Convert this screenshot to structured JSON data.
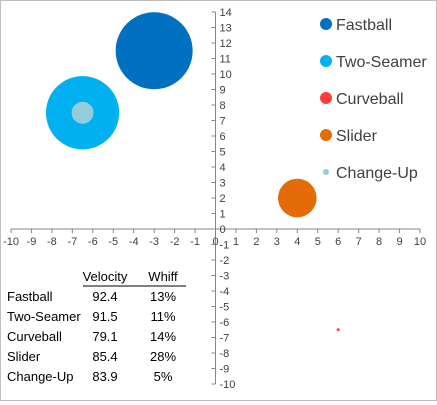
{
  "chart_data": {
    "type": "bubble",
    "xlim": [
      -10,
      10
    ],
    "ylim": [
      -10,
      14
    ],
    "x_ticks": [
      -10,
      -9,
      -8,
      -7,
      -6,
      -5,
      -4,
      -3,
      -2,
      -1,
      0,
      1,
      2,
      3,
      4,
      5,
      6,
      7,
      8,
      9,
      10
    ],
    "y_ticks": [
      -10,
      -9,
      -8,
      -7,
      -6,
      -5,
      -4,
      -3,
      -2,
      -1,
      0,
      1,
      2,
      3,
      4,
      5,
      6,
      7,
      8,
      9,
      10,
      11,
      12,
      13,
      14
    ],
    "grid": false,
    "legend_position": "right",
    "series": [
      {
        "name": "Fastball",
        "x": -3,
        "y": 11.5,
        "size": 92.4,
        "color": "#0070C0"
      },
      {
        "name": "Two-Seamer",
        "x": -6.5,
        "y": 7.5,
        "size": 91.5,
        "color": "#00B0F0"
      },
      {
        "name": "Curveball",
        "x": 6,
        "y": -6.5,
        "size": 79.1,
        "color": "#FF3B3B"
      },
      {
        "name": "Slider",
        "x": 4,
        "y": 2,
        "size": 85.4,
        "color": "#E36C09"
      },
      {
        "name": "Change-Up",
        "x": -6.5,
        "y": 7.5,
        "size": 83.9,
        "color": "#92CDDC"
      }
    ],
    "table": {
      "headers": [
        "",
        "Velocity",
        "Whiff"
      ],
      "rows": [
        [
          "Fastball",
          "92.4",
          "13%"
        ],
        [
          "Two-Seamer",
          "91.5",
          "11%"
        ],
        [
          "Curveball",
          "79.1",
          "14%"
        ],
        [
          "Slider",
          "85.4",
          "28%"
        ],
        [
          "Change-Up",
          "83.9",
          "5%"
        ]
      ]
    }
  }
}
